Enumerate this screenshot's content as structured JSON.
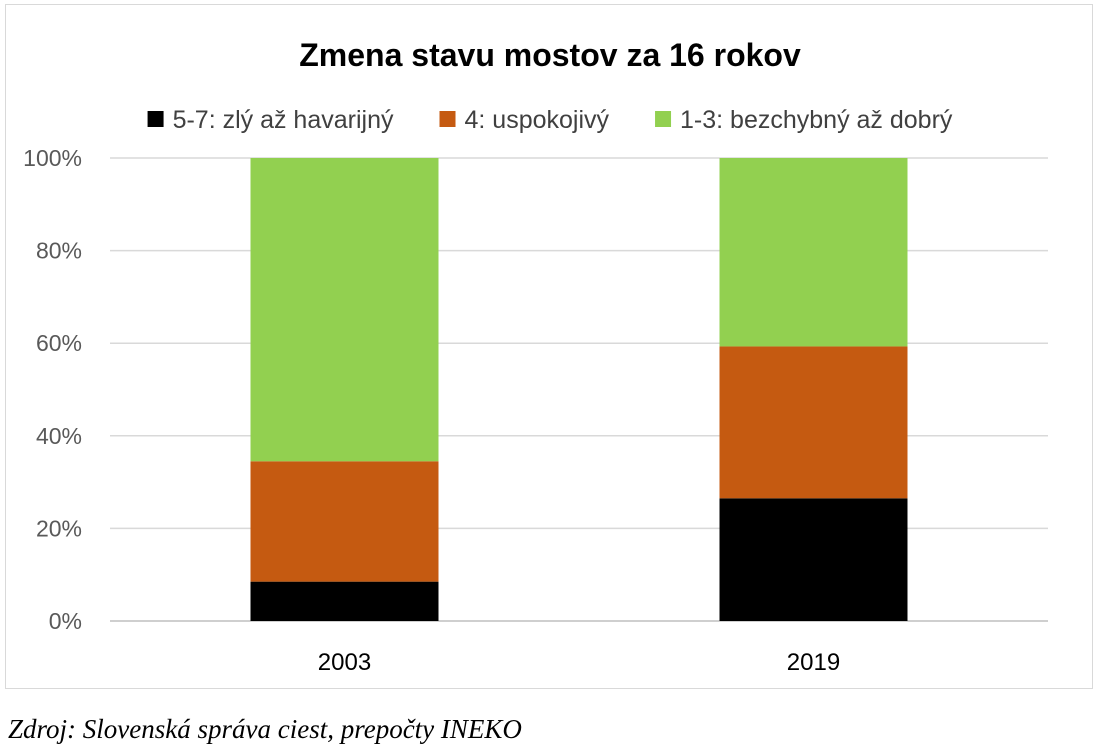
{
  "chart_data": {
    "type": "bar",
    "stacked": true,
    "title": "Zmena stavu mostov za 16 rokov",
    "categories": [
      "2003",
      "2019"
    ],
    "series": [
      {
        "name": "5-7: zlý až havarijný",
        "values": [
          8.5,
          26.5
        ],
        "color": "#000000"
      },
      {
        "name": "4: uspokojivý",
        "values": [
          26.0,
          32.8
        ],
        "color": "#C55A11"
      },
      {
        "name": "1-3: bezchybný až dobrý",
        "values": [
          65.5,
          40.7
        ],
        "color": "#92D050"
      }
    ],
    "ylim": [
      0,
      100
    ],
    "yticks": [
      "0%",
      "20%",
      "40%",
      "60%",
      "80%",
      "100%"
    ],
    "grid": true,
    "legend_position": "top"
  },
  "source": "Zdroj: Slovenská správa ciest, prepočty INEKO"
}
